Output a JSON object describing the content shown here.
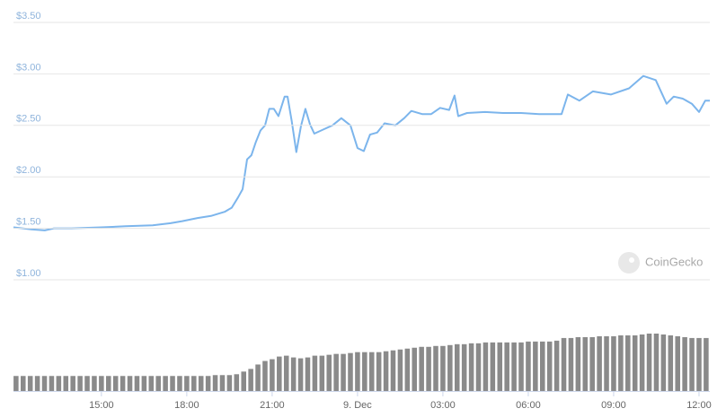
{
  "chart_data": [
    {
      "type": "line",
      "color": "#7cb5ec",
      "watermark": "CoinGecko",
      "grid": true,
      "x": [
        11.91,
        12.54,
        13.01,
        13.33,
        13.96,
        15,
        15.85,
        16.8,
        17.43,
        17.84,
        18.38,
        18.85,
        19.33,
        19.58,
        19.8,
        19.96,
        20.12,
        20.27,
        20.43,
        20.59,
        20.75,
        20.9,
        21.06,
        21.22,
        21.44,
        21.54,
        21.69,
        21.85,
        22.01,
        22.17,
        22.33,
        22.48,
        22.8,
        23.12,
        23.43,
        23.75,
        24,
        24.22,
        24.44,
        24.69,
        24.95,
        25.33,
        25.64,
        25.89,
        26.27,
        26.59,
        26.9,
        27.22,
        27.41,
        27.54,
        27.85,
        28.48,
        29.11,
        29.75,
        30.38,
        31.17,
        31.39,
        31.8,
        32.27,
        32.9,
        33.54,
        34.04,
        34.48,
        34.86,
        35.11,
        35.43,
        35.75,
        36,
        36.22,
        36.38
      ],
      "values": [
        1.51,
        1.49,
        1.48,
        1.5,
        1.5,
        1.51,
        1.52,
        1.53,
        1.55,
        1.57,
        1.6,
        1.62,
        1.66,
        1.7,
        1.8,
        1.88,
        2.17,
        2.21,
        2.34,
        2.45,
        2.5,
        2.66,
        2.66,
        2.59,
        2.78,
        2.78,
        2.54,
        2.24,
        2.49,
        2.66,
        2.51,
        2.42,
        2.46,
        2.5,
        2.57,
        2.5,
        2.28,
        2.25,
        2.41,
        2.43,
        2.52,
        2.5,
        2.57,
        2.64,
        2.61,
        2.61,
        2.67,
        2.65,
        2.79,
        2.59,
        2.62,
        2.63,
        2.62,
        2.62,
        2.61,
        2.61,
        2.8,
        2.74,
        2.83,
        2.8,
        2.86,
        2.98,
        2.94,
        2.71,
        2.78,
        2.76,
        2.71,
        2.63,
        2.74,
        2.74
      ],
      "xlim": [
        11.91,
        36.38
      ],
      "ylim": [
        1.0,
        3.5
      ],
      "yticks": [
        {
          "value": 1.0,
          "label": "$1.00"
        },
        {
          "value": 1.5,
          "label": "$1.50"
        },
        {
          "value": 2.0,
          "label": "$2.00"
        },
        {
          "value": 2.5,
          "label": "$2.50"
        },
        {
          "value": 3.0,
          "label": "$3.00"
        },
        {
          "value": 3.5,
          "label": "$3.50"
        }
      ]
    },
    {
      "type": "bar",
      "color": "#8a8a8a",
      "x": [
        12,
        12.25,
        12.5,
        12.75,
        13,
        13.25,
        13.5,
        13.75,
        14,
        14.25,
        14.5,
        14.75,
        15,
        15.25,
        15.5,
        15.75,
        16,
        16.25,
        16.5,
        16.75,
        17,
        17.25,
        17.5,
        17.75,
        18,
        18.25,
        18.5,
        18.75,
        19,
        19.25,
        19.5,
        19.75,
        20,
        20.25,
        20.5,
        20.75,
        21,
        21.25,
        21.5,
        21.75,
        22,
        22.25,
        22.5,
        22.75,
        23,
        23.25,
        23.5,
        23.75,
        24,
        24.25,
        24.5,
        24.75,
        25,
        25.25,
        25.5,
        25.75,
        26,
        26.25,
        26.5,
        26.75,
        27,
        27.25,
        27.5,
        27.75,
        28,
        28.25,
        28.5,
        28.75,
        29,
        29.25,
        29.5,
        29.75,
        30,
        30.25,
        30.5,
        30.75,
        31,
        31.25,
        31.5,
        31.75,
        32,
        32.25,
        32.5,
        32.75,
        33,
        33.25,
        33.5,
        33.75,
        34,
        34.25,
        34.5,
        34.75,
        35,
        35.25,
        35.5,
        35.75,
        36,
        36.25
      ],
      "values": [
        17,
        17,
        17,
        17,
        17,
        17,
        17,
        17,
        17,
        17,
        17,
        17,
        17,
        17,
        17,
        17,
        17,
        17,
        17,
        17,
        17,
        17,
        17,
        17,
        17,
        17,
        17,
        17,
        18,
        18,
        18,
        19,
        22,
        25,
        30,
        34,
        36,
        39,
        40,
        38,
        37,
        38,
        40,
        40,
        41,
        42,
        42,
        43,
        44,
        44,
        44,
        44,
        45,
        46,
        47,
        48,
        49,
        50,
        50,
        51,
        51,
        52,
        53,
        53,
        54,
        54,
        55,
        55,
        55,
        55,
        55,
        55,
        56,
        56,
        56,
        56,
        57,
        60,
        60,
        61,
        61,
        61,
        62,
        62,
        62,
        63,
        63,
        63,
        64,
        65,
        65,
        64,
        63,
        62,
        61,
        60,
        60,
        60
      ],
      "xlim": [
        11.91,
        36.38
      ],
      "xticks": [
        {
          "value": 15,
          "label": "15:00"
        },
        {
          "value": 18,
          "label": "18:00"
        },
        {
          "value": 21,
          "label": "21:00"
        },
        {
          "value": 24,
          "label": "9. Dec"
        },
        {
          "value": 27,
          "label": "03:00"
        },
        {
          "value": 30,
          "label": "06:00"
        },
        {
          "value": 33,
          "label": "09:00"
        },
        {
          "value": 36,
          "label": "12:00"
        }
      ]
    }
  ]
}
